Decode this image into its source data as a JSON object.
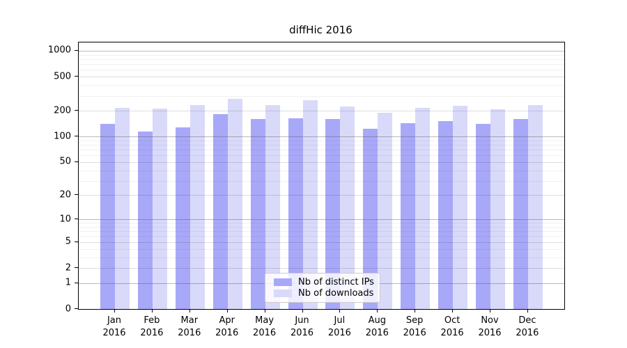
{
  "title": "diffHic 2016",
  "legend": {
    "items": [
      {
        "label": "Nb of distinct IPs",
        "color": "#a8a8f8"
      },
      {
        "label": "Nb of downloads",
        "color": "#d9d9fa"
      }
    ]
  },
  "colors": {
    "bar_distinct_ips": "#a8a8f8",
    "bar_downloads": "#d9d9fa",
    "axis": "#000000"
  },
  "chart_data": {
    "type": "bar",
    "title": "diffHic 2016",
    "categories": [
      "Jan 2016",
      "Feb 2016",
      "Mar 2016",
      "Apr 2016",
      "May 2016",
      "Jun 2016",
      "Jul 2016",
      "Aug 2016",
      "Sep 2016",
      "Oct 2016",
      "Nov 2016",
      "Dec 2016"
    ],
    "series": [
      {
        "name": "Nb of distinct IPs",
        "color": "#a8a8f8",
        "values": [
          140,
          115,
          127,
          182,
          159,
          164,
          159,
          124,
          143,
          152,
          140,
          160
        ]
      },
      {
        "name": "Nb of downloads",
        "color": "#d9d9fa",
        "values": [
          217,
          212,
          235,
          277,
          231,
          266,
          224,
          188,
          218,
          227,
          210,
          231
        ]
      }
    ],
    "xlabel": "",
    "ylabel": "",
    "yscale": "log1p",
    "yticks": [
      0,
      1,
      2,
      5,
      10,
      20,
      50,
      100,
      200,
      500,
      1000
    ],
    "ylim": [
      0,
      1250
    ],
    "grid": true,
    "legend_position": "lower center"
  }
}
